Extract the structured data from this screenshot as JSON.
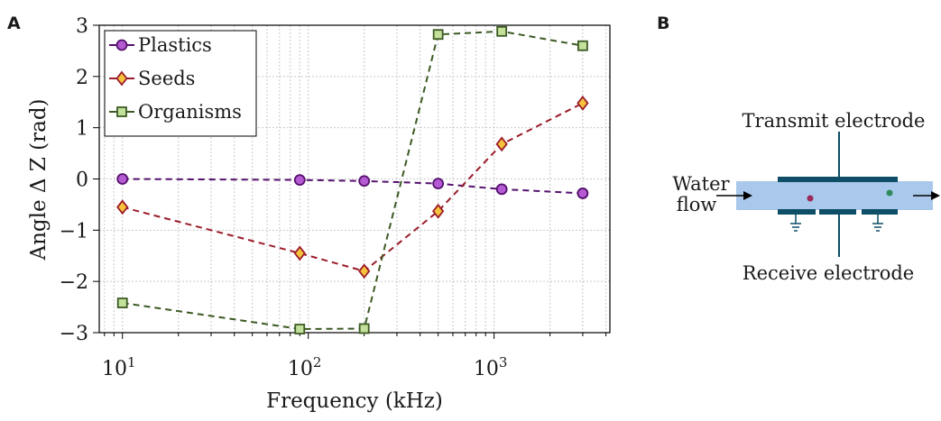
{
  "panels": {
    "a": "A",
    "b": "B"
  },
  "chart_data": {
    "type": "line",
    "xlabel": "Frequency (kHz)",
    "ylabel": "Angle Δ Z (rad)",
    "xscale": "log",
    "xlim": [
      7.5,
      4200
    ],
    "ylim": [
      -3,
      3
    ],
    "xticks": [
      10,
      100,
      1000
    ],
    "xtick_labels": [
      {
        "base": "10",
        "exp": "1"
      },
      {
        "base": "10",
        "exp": "2"
      },
      {
        "base": "10",
        "exp": "3"
      }
    ],
    "yticks": [
      -3,
      -2,
      -1,
      0,
      1,
      2,
      3
    ],
    "ytick_labels": [
      "−3",
      "−2",
      "−1",
      "0",
      "1",
      "2",
      "3"
    ],
    "grid": true,
    "legend_position": "top-left",
    "x": [
      10,
      90,
      200,
      500,
      1100,
      3000
    ],
    "series": [
      {
        "name": "Plastics",
        "values": [
          0.0,
          -0.02,
          -0.04,
          -0.09,
          -0.2,
          -0.28
        ],
        "color": "#55106e",
        "marker": "circle",
        "marker_fill": "#b45ad2"
      },
      {
        "name": "Seeds",
        "values": [
          -0.55,
          -1.45,
          -1.8,
          -0.63,
          0.68,
          1.48
        ],
        "color": "#9b1c2a",
        "marker": "diamond",
        "marker_fill": "#f5c33c"
      },
      {
        "name": "Organisms",
        "values": [
          -2.42,
          -2.93,
          -2.92,
          2.82,
          2.88,
          2.6
        ],
        "color": "#3c5a23",
        "marker": "square",
        "marker_fill": "#c3e19b"
      }
    ]
  },
  "diagram": {
    "transmit_label": "Transmit electrode",
    "receive_label": "Receive electrode",
    "flow_line1": "Water",
    "flow_line2": "flow",
    "channel_color": "#a9c8ec",
    "electrode_color": "#0e4e66",
    "particle_colors": [
      "#9c2a5b",
      "#2e8a5a"
    ]
  }
}
